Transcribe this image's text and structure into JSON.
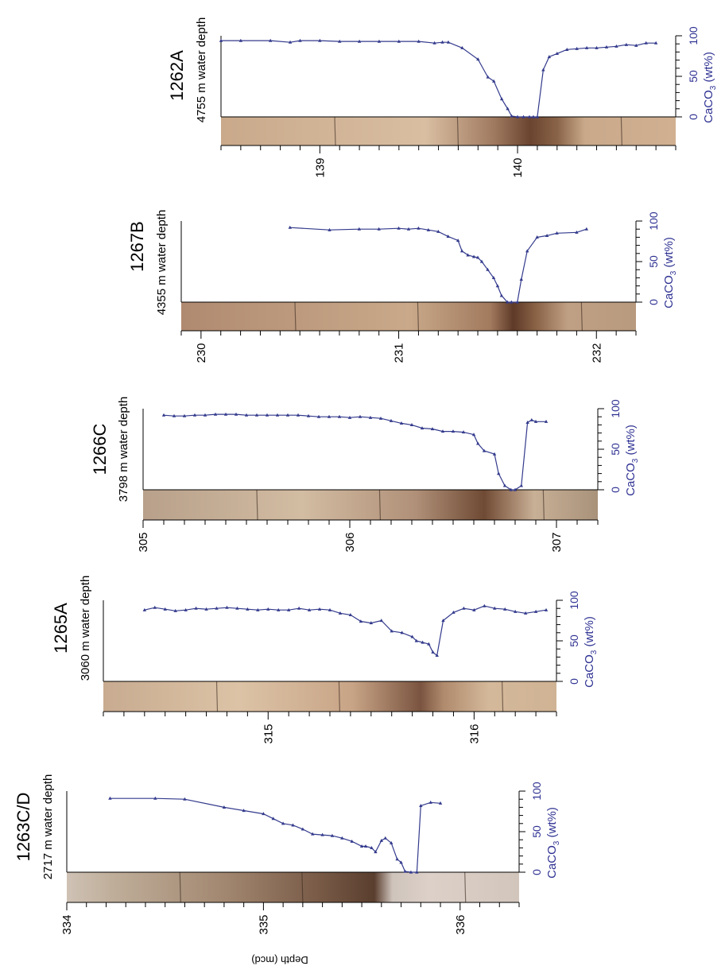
{
  "figure": {
    "shared_depth_label": "Depth (mcd)",
    "ca_axis_label_base": "CaCO",
    "ca_axis_label_sub": "3",
    "ca_axis_label_suffix": " (wt%)",
    "ca_ticks": [
      0,
      50,
      100
    ],
    "colors": {
      "series": "#333a8c",
      "axis": "#000000",
      "ca_axis_text": "#2e3192",
      "core_light": "#d7b79a",
      "core_dark": "#6b4430"
    }
  },
  "chart_data": [
    {
      "type": "line",
      "site": "1262A",
      "water_depth": "4755 m water depth",
      "depth_range": [
        138.5,
        140.8
      ],
      "depth_ticks": [
        139,
        140
      ],
      "ca_range": [
        0,
        100
      ],
      "series": [
        {
          "x": [
            138.5,
            138.6,
            138.75,
            138.85,
            138.9,
            139.0,
            139.1,
            139.2,
            139.3,
            139.4,
            139.5,
            139.58,
            139.62,
            139.65,
            139.72,
            139.8,
            139.85,
            139.88,
            139.92,
            139.95,
            139.97,
            140.0,
            140.03,
            140.06,
            140.08,
            140.1,
            140.13,
            140.16,
            140.2,
            140.25,
            140.3,
            140.35,
            140.4,
            140.45,
            140.5,
            140.55,
            140.6,
            140.65,
            140.7
          ],
          "y": [
            94,
            94,
            94,
            92,
            94,
            94,
            93,
            93,
            93,
            93,
            93,
            91,
            92,
            92,
            85,
            71,
            49,
            44,
            22,
            10,
            1,
            0,
            0,
            0,
            0,
            0,
            58,
            74,
            78,
            83,
            84,
            85,
            85,
            86,
            87,
            89,
            88,
            91,
            91
          ]
        }
      ]
    },
    {
      "type": "line",
      "site": "1267B",
      "water_depth": "4355 m water depth",
      "depth_range": [
        229.9,
        232.2
      ],
      "depth_ticks": [
        230,
        231,
        232
      ],
      "ca_range": [
        0,
        100
      ],
      "series": [
        {
          "x": [
            230.45,
            230.65,
            230.8,
            230.9,
            231.0,
            231.05,
            231.1,
            231.15,
            231.2,
            231.25,
            231.3,
            231.32,
            231.35,
            231.38,
            231.4,
            231.42,
            231.45,
            231.48,
            231.5,
            231.52,
            231.55,
            231.57,
            231.6,
            231.62,
            231.65,
            231.7,
            231.75,
            231.8,
            231.9,
            231.95
          ],
          "y": [
            92,
            89,
            90,
            90,
            91,
            90,
            91,
            89,
            87,
            81,
            76,
            63,
            58,
            56,
            55,
            50,
            40,
            30,
            20,
            8,
            0,
            0,
            0,
            28,
            63,
            80,
            82,
            85,
            86,
            90
          ]
        }
      ]
    },
    {
      "type": "line",
      "site": "1266C",
      "water_depth": "3798 m water depth",
      "depth_range": [
        305.0,
        307.2
      ],
      "depth_ticks": [
        305,
        306,
        307
      ],
      "ca_range": [
        0,
        100
      ],
      "series": [
        {
          "x": [
            305.1,
            305.15,
            305.2,
            305.25,
            305.3,
            305.35,
            305.4,
            305.45,
            305.5,
            305.55,
            305.6,
            305.65,
            305.7,
            305.75,
            305.8,
            305.85,
            305.9,
            305.95,
            306.0,
            306.05,
            306.1,
            306.15,
            306.2,
            306.25,
            306.3,
            306.35,
            306.4,
            306.45,
            306.5,
            306.55,
            306.6,
            306.62,
            306.65,
            306.7,
            306.72,
            306.75,
            306.78,
            306.8,
            306.83,
            306.86,
            306.88,
            306.9,
            306.95
          ],
          "y": [
            92,
            91,
            91,
            92,
            92,
            93,
            93,
            93,
            92,
            92,
            92,
            92,
            92,
            92,
            91,
            90,
            90,
            90,
            89,
            90,
            89,
            88,
            85,
            82,
            80,
            76,
            75,
            72,
            72,
            71,
            68,
            57,
            48,
            44,
            20,
            5,
            0,
            0,
            5,
            83,
            86,
            84,
            84
          ]
        }
      ]
    },
    {
      "type": "line",
      "site": "1265A",
      "water_depth": "3060 m water depth",
      "depth_range": [
        314.2,
        316.4
      ],
      "depth_ticks": [
        315,
        316
      ],
      "ca_range": [
        0,
        100
      ],
      "series": [
        {
          "x": [
            314.4,
            314.45,
            314.5,
            314.55,
            314.6,
            314.65,
            314.7,
            314.75,
            314.8,
            314.85,
            314.9,
            314.95,
            315.0,
            315.05,
            315.1,
            315.15,
            315.2,
            315.25,
            315.3,
            315.35,
            315.4,
            315.45,
            315.5,
            315.55,
            315.6,
            315.65,
            315.7,
            315.72,
            315.75,
            315.78,
            315.8,
            315.82,
            315.85,
            315.9,
            315.95,
            316.0,
            316.05,
            316.1,
            316.15,
            316.2,
            316.25,
            316.3,
            316.35
          ],
          "y": [
            88,
            91,
            89,
            87,
            88,
            90,
            89,
            90,
            91,
            90,
            89,
            88,
            89,
            88,
            88,
            90,
            88,
            89,
            88,
            84,
            82,
            74,
            72,
            75,
            62,
            60,
            55,
            50,
            48,
            46,
            36,
            32,
            75,
            85,
            90,
            88,
            93,
            90,
            89,
            86,
            84,
            86,
            88
          ]
        }
      ]
    },
    {
      "type": "line",
      "site": "1263C/D",
      "water_depth": "2717 m water depth",
      "depth_range": [
        334.0,
        336.3
      ],
      "depth_ticks": [
        334,
        335,
        336
      ],
      "ca_range": [
        0,
        100
      ],
      "series": [
        {
          "x": [
            334.22,
            334.45,
            334.6,
            334.8,
            334.9,
            335.0,
            335.05,
            335.1,
            335.15,
            335.2,
            335.25,
            335.3,
            335.35,
            335.4,
            335.45,
            335.5,
            335.52,
            335.55,
            335.57,
            335.6,
            335.62,
            335.65,
            335.68,
            335.7,
            335.72,
            335.75,
            335.78,
            335.8,
            335.85,
            335.9
          ],
          "y": [
            91,
            91,
            90,
            80,
            76,
            72,
            66,
            60,
            58,
            53,
            47,
            46,
            45,
            42,
            38,
            32,
            32,
            30,
            25,
            39,
            42,
            36,
            16,
            12,
            1,
            0,
            0,
            82,
            86,
            85
          ]
        }
      ]
    }
  ]
}
